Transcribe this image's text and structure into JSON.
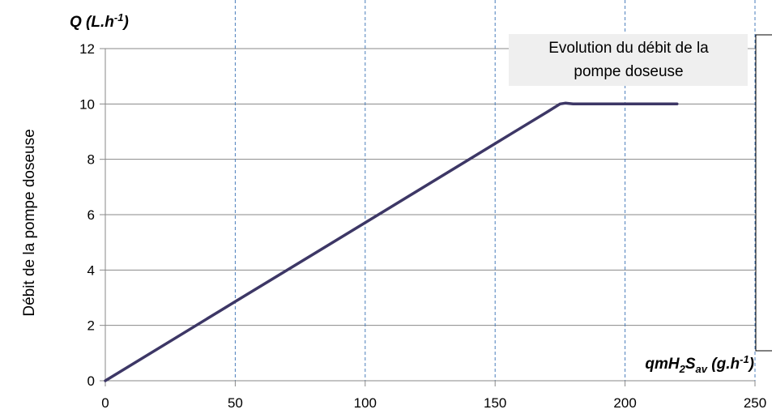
{
  "chart_data": {
    "type": "line",
    "title": "",
    "ylabel": "Débit de la pompe doseuse",
    "y_quantity_label": {
      "main": "Q (L.h",
      "sup": "-1",
      "tail": ")"
    },
    "x_quantity_label": {
      "main": "qmH",
      "sub1": "2",
      "mid": "S",
      "sub2": "av",
      "rest": " (g.h",
      "sup": "-1",
      "tail": ")"
    },
    "annotation": [
      "Evolution du débit de la",
      "pompe doseuse"
    ],
    "xlim": [
      0,
      250
    ],
    "ylim": [
      0,
      12
    ],
    "xticks": [
      0,
      50,
      100,
      150,
      200,
      250
    ],
    "yticks": [
      0,
      2,
      4,
      6,
      8,
      10,
      12
    ],
    "grid": {
      "horizontal": "solid",
      "vertical": "dashed"
    },
    "series": [
      {
        "color": "#3d3766",
        "x": [
          0,
          50,
          100,
          150,
          170,
          175,
          177,
          180,
          220
        ],
        "y": [
          0,
          2.86,
          5.71,
          8.57,
          9.71,
          10.0,
          10.03,
          10.0,
          10.0
        ]
      }
    ]
  }
}
